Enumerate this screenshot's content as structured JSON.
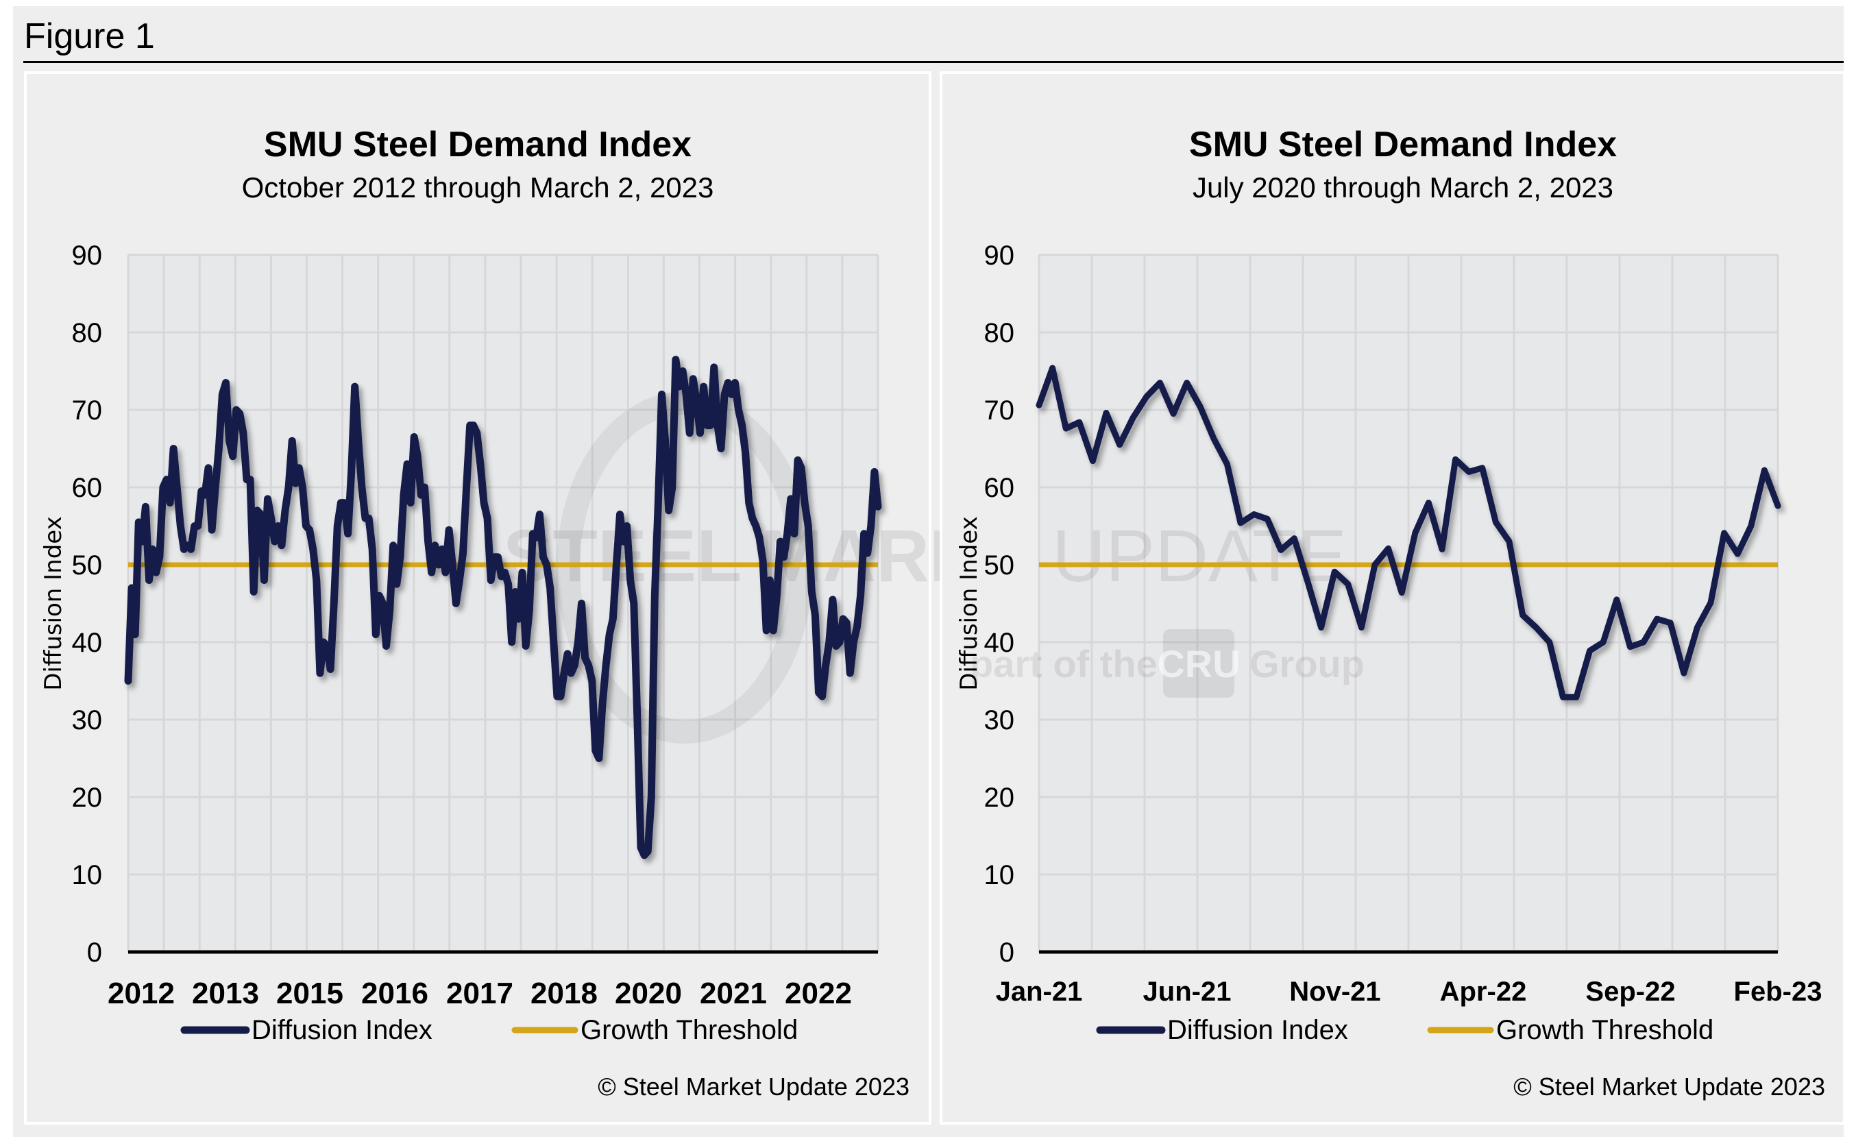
{
  "figure_title": "Figure 1",
  "colors": {
    "diffusion_index": "#161c4a",
    "growth_threshold": "#d4a516",
    "plot_bg": "#e7e8ea",
    "grid": "#d7d7d9",
    "page_bg": "#eeeeee"
  },
  "watermark": {
    "brand_bold": "STEEL MARKET",
    "brand_light": "UPDATE",
    "tagline_pre": "part of the",
    "tagline_logo": "CRU",
    "tagline_post": "Group"
  },
  "chart_data": [
    {
      "type": "line",
      "title": "SMU Steel Demand Index",
      "subtitle": "October 2012 through March 2, 2023",
      "xlabel": "",
      "ylabel": "Diffusion Index",
      "ylim": [
        0,
        90
      ],
      "yticks": [
        0,
        10,
        20,
        30,
        40,
        50,
        60,
        70,
        80,
        90
      ],
      "xtick_labels": [
        "2012",
        "2013",
        "2015",
        "2016",
        "2017",
        "2018",
        "2020",
        "2021",
        "2022"
      ],
      "grid": true,
      "legend_position": "bottom",
      "copyright": "© Steel Market Update 2023",
      "x_range": [
        "October 2012",
        "March 2, 2023"
      ],
      "series": [
        {
          "name": "Diffusion Index",
          "values": [
            35,
            47,
            41,
            55.5,
            53,
            57.5,
            48,
            52,
            49,
            51,
            60,
            61,
            58,
            65,
            60,
            55,
            52,
            52.5,
            52,
            55,
            55,
            59.5,
            59,
            62.5,
            54.5,
            60,
            65,
            72,
            73.5,
            66,
            64,
            70,
            69.5,
            67,
            61,
            61,
            46.5,
            57,
            56.5,
            48,
            58.5,
            56,
            53,
            55,
            52.5,
            57,
            60,
            66,
            60.5,
            62.5,
            60,
            55,
            54.5,
            52,
            48,
            36,
            40,
            39.5,
            36.5,
            45,
            55,
            58,
            58,
            54,
            62,
            73,
            66,
            60,
            56,
            56,
            52,
            41,
            46,
            45,
            39.5,
            44,
            52.5,
            47.5,
            51,
            59,
            63,
            58,
            66.5,
            64,
            59,
            60,
            53,
            49,
            52.5,
            50,
            52,
            49,
            54.5,
            50,
            45,
            48,
            51.5,
            60,
            68,
            68,
            67,
            63,
            58,
            56,
            48,
            51,
            51,
            48.5,
            49,
            47.5,
            40,
            46.5,
            43,
            49,
            39.5,
            44,
            54,
            53.5,
            56.5,
            51,
            50,
            47,
            40,
            33,
            33,
            36,
            38.5,
            36,
            37,
            40,
            45,
            38,
            37,
            35,
            26,
            25,
            32,
            37,
            41,
            43,
            50,
            56.5,
            53,
            55,
            48,
            45,
            30,
            13.5,
            12.5,
            13,
            20,
            46,
            58,
            72,
            66,
            57,
            60,
            76.5,
            73,
            75,
            72,
            67,
            74,
            71,
            67,
            73,
            68,
            68,
            75.5,
            68,
            65,
            72,
            73.5,
            72,
            73.5,
            70,
            68,
            64.5,
            58,
            56,
            55,
            53.5,
            50.5,
            41.5,
            48,
            41.5,
            46,
            53,
            51,
            54,
            58.5,
            54,
            63.5,
            62.5,
            58,
            55,
            46.5,
            43.5,
            33.5,
            33,
            37,
            40,
            45.5,
            39.5,
            40,
            43,
            42.5,
            36,
            40,
            42,
            46,
            54,
            51.5,
            55,
            62,
            57.5
          ]
        },
        {
          "name": "Growth Threshold",
          "constant": 50
        }
      ]
    },
    {
      "type": "line",
      "title": "SMU Steel Demand Index",
      "subtitle": "July 2020 through March 2, 2023",
      "xlabel": "",
      "ylabel": "Diffusion Index",
      "ylim": [
        0,
        90
      ],
      "yticks": [
        0,
        10,
        20,
        30,
        40,
        50,
        60,
        70,
        80,
        90
      ],
      "xtick_labels": [
        "Jan-21",
        "Jun-21",
        "Nov-21",
        "Apr-22",
        "Sep-22",
        "Feb-23"
      ],
      "grid": true,
      "legend_position": "bottom",
      "copyright": "© Steel Market Update 2023",
      "series": [
        {
          "name": "Diffusion Index",
          "values": [
            70.6,
            75.4,
            67.6,
            68.4,
            63.4,
            69.6,
            65.5,
            69.0,
            71.7,
            73.5,
            69.5,
            73.5,
            70.4,
            66.3,
            63.0,
            55.4,
            56.5,
            55.9,
            51.9,
            53.4,
            47.8,
            41.9,
            49.1,
            47.5,
            41.9,
            50.0,
            52.1,
            46.4,
            54.1,
            58.0,
            52.0,
            63.6,
            62.0,
            62.5,
            55.5,
            53.0,
            43.5,
            41.9,
            40.0,
            32.9,
            32.9,
            38.9,
            40.0,
            45.5,
            39.4,
            40.0,
            43.0,
            42.5,
            36.0,
            41.9,
            45.1,
            54.1,
            51.4,
            55.0,
            62.2,
            57.6
          ]
        },
        {
          "name": "Growth Threshold",
          "constant": 50
        }
      ]
    }
  ]
}
